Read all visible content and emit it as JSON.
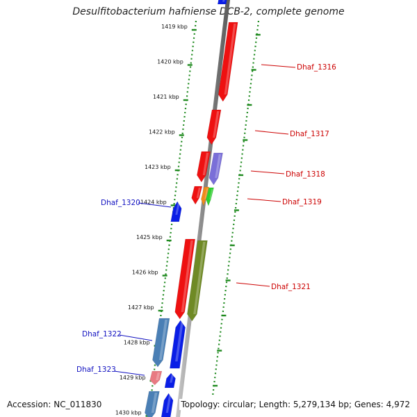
{
  "title": "Desulfitobacterium hafniense DCB-2, complete genome",
  "footer": {
    "accession": "Accession: NC_011830",
    "topology": "Topology: circular; Length: 5,279,134 bp; Genes: 4,972"
  },
  "scale": {
    "ticks": [
      "1419 kbp",
      "1420 kbp",
      "1421 kbp",
      "1422 kbp",
      "1423 kbp",
      "1424 kbp",
      "1425 kbp",
      "1426 kbp",
      "1427 kbp",
      "1428 kbp",
      "1429 kbp",
      "1430 kbp"
    ]
  },
  "colors": {
    "red": "#ee1111",
    "blue": "#0a1ee6",
    "lavender": "#7a6fd8",
    "orange": "#f08a1a",
    "green": "#2fcf2f",
    "olive": "#6f8a25",
    "steel": "#4a7fb5",
    "pink": "#e87a82",
    "dots": "#1f8a1f",
    "label_red": "#cc0000",
    "label_blue": "#1010c0"
  },
  "genes": [
    {
      "name": "Dhaf_1316",
      "side": "right",
      "color_key": "label_red"
    },
    {
      "name": "Dhaf_1317",
      "side": "right",
      "color_key": "label_red"
    },
    {
      "name": "Dhaf_1318",
      "side": "right",
      "color_key": "label_red"
    },
    {
      "name": "Dhaf_1319",
      "side": "right",
      "color_key": "label_red"
    },
    {
      "name": "Dhaf_1320",
      "side": "left",
      "color_key": "label_blue"
    },
    {
      "name": "Dhaf_1321",
      "side": "right",
      "color_key": "label_red"
    },
    {
      "name": "Dhaf_1322",
      "side": "left",
      "color_key": "label_blue"
    },
    {
      "name": "Dhaf_1323",
      "side": "left",
      "color_key": "label_blue"
    }
  ]
}
